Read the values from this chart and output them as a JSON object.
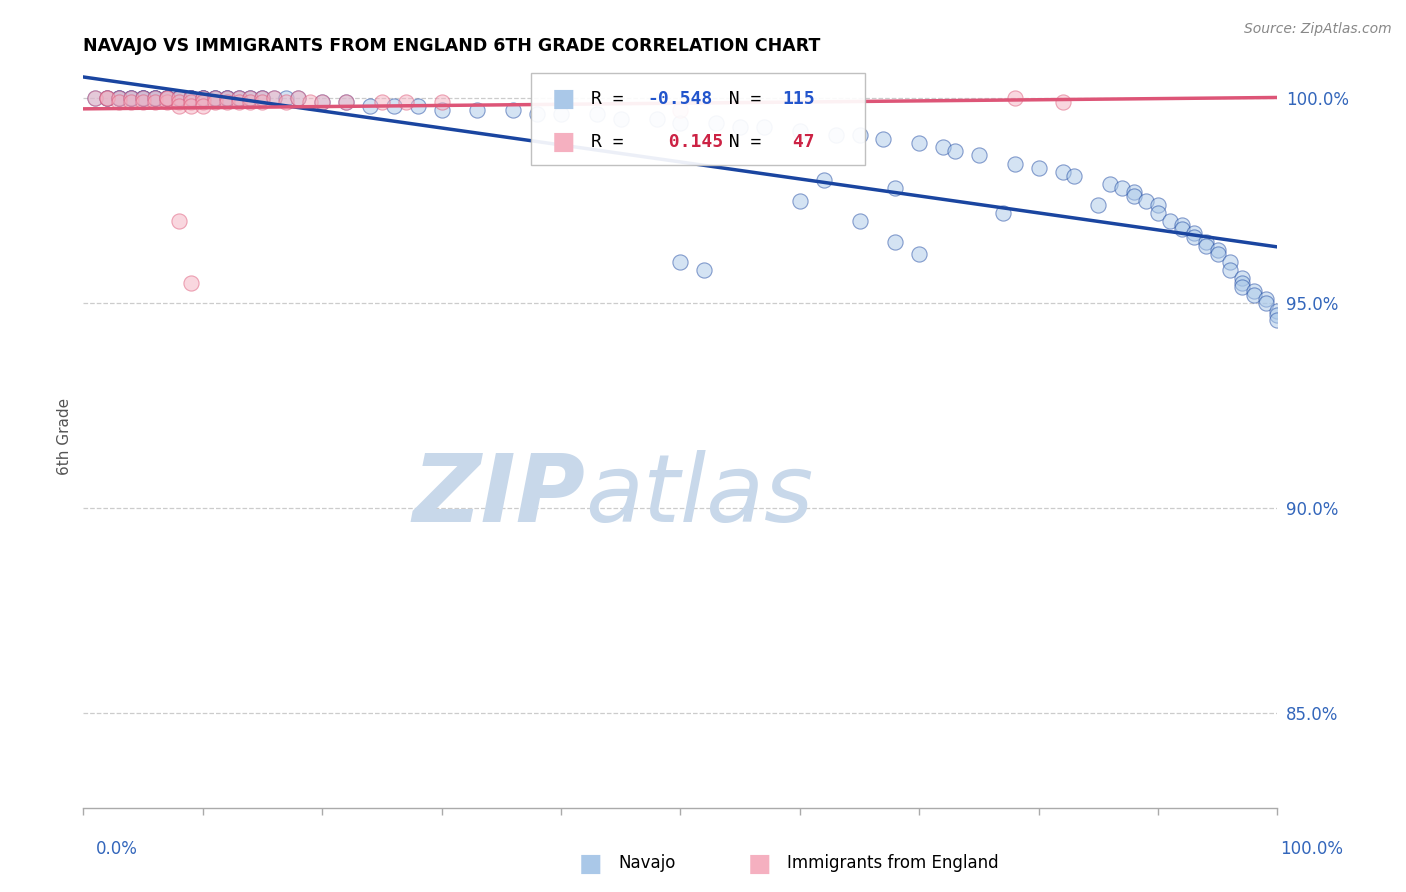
{
  "title": "NAVAJO VS IMMIGRANTS FROM ENGLAND 6TH GRADE CORRELATION CHART",
  "source": "Source: ZipAtlas.com",
  "ylabel": "6th Grade",
  "yticks": [
    0.85,
    0.9,
    0.95,
    1.0
  ],
  "ytick_labels": [
    "85.0%",
    "90.0%",
    "95.0%",
    "100.0%"
  ],
  "xlim": [
    0.0,
    1.0
  ],
  "ylim": [
    0.827,
    1.008
  ],
  "legend_blue_r": "-0.548",
  "legend_blue_n": "115",
  "legend_pink_r": "0.145",
  "legend_pink_n": "47",
  "blue_scatter_color": "#aac8e8",
  "blue_line_color": "#1a45a0",
  "pink_scatter_color": "#f5b0c0",
  "pink_line_color": "#dd5577",
  "legend_r_blue_color": "#2255cc",
  "legend_r_pink_color": "#cc2244",
  "watermark_zip": "ZIP",
  "watermark_atlas": "atlas",
  "watermark_color": "#dce6f0",
  "grid_color": "#cccccc",
  "axis_label_color": "#3366bb",
  "title_fontsize": 12.5,
  "source_fontsize": 10,
  "ytick_fontsize": 12,
  "xtick_label_fontsize": 12,
  "navajo_x": [
    0.01,
    0.02,
    0.02,
    0.03,
    0.03,
    0.03,
    0.04,
    0.04,
    0.04,
    0.05,
    0.05,
    0.05,
    0.05,
    0.06,
    0.06,
    0.06,
    0.06,
    0.07,
    0.07,
    0.07,
    0.07,
    0.08,
    0.08,
    0.08,
    0.08,
    0.09,
    0.09,
    0.09,
    0.09,
    0.1,
    0.1,
    0.1,
    0.1,
    0.11,
    0.11,
    0.11,
    0.12,
    0.12,
    0.12,
    0.13,
    0.13,
    0.14,
    0.14,
    0.15,
    0.15,
    0.16,
    0.17,
    0.18,
    0.2,
    0.22,
    0.24,
    0.26,
    0.28,
    0.3,
    0.33,
    0.36,
    0.38,
    0.4,
    0.43,
    0.45,
    0.48,
    0.5,
    0.53,
    0.55,
    0.57,
    0.6,
    0.62,
    0.63,
    0.65,
    0.67,
    0.68,
    0.7,
    0.72,
    0.73,
    0.75,
    0.77,
    0.78,
    0.8,
    0.82,
    0.83,
    0.85,
    0.86,
    0.87,
    0.88,
    0.88,
    0.89,
    0.9,
    0.9,
    0.91,
    0.92,
    0.92,
    0.93,
    0.93,
    0.94,
    0.94,
    0.95,
    0.95,
    0.96,
    0.96,
    0.97,
    0.97,
    0.97,
    0.98,
    0.98,
    0.99,
    0.99,
    1.0,
    1.0,
    1.0,
    0.5,
    0.52,
    0.6,
    0.65,
    0.68,
    0.7
  ],
  "navajo_y": [
    1.0,
    1.0,
    1.0,
    1.0,
    1.0,
    1.0,
    1.0,
    1.0,
    1.0,
    1.0,
    1.0,
    1.0,
    1.0,
    1.0,
    1.0,
    1.0,
    1.0,
    1.0,
    1.0,
    1.0,
    1.0,
    1.0,
    1.0,
    1.0,
    1.0,
    1.0,
    1.0,
    1.0,
    1.0,
    1.0,
    1.0,
    1.0,
    1.0,
    1.0,
    1.0,
    1.0,
    1.0,
    1.0,
    1.0,
    1.0,
    1.0,
    1.0,
    1.0,
    1.0,
    1.0,
    1.0,
    1.0,
    1.0,
    0.999,
    0.999,
    0.998,
    0.998,
    0.998,
    0.997,
    0.997,
    0.997,
    0.996,
    0.996,
    0.996,
    0.995,
    0.995,
    0.994,
    0.994,
    0.993,
    0.993,
    0.992,
    0.98,
    0.991,
    0.991,
    0.99,
    0.978,
    0.989,
    0.988,
    0.987,
    0.986,
    0.972,
    0.984,
    0.983,
    0.982,
    0.981,
    0.974,
    0.979,
    0.978,
    0.977,
    0.976,
    0.975,
    0.974,
    0.972,
    0.97,
    0.969,
    0.968,
    0.967,
    0.966,
    0.965,
    0.964,
    0.963,
    0.962,
    0.96,
    0.958,
    0.956,
    0.955,
    0.954,
    0.953,
    0.952,
    0.951,
    0.95,
    0.948,
    0.947,
    0.946,
    0.96,
    0.958,
    0.975,
    0.97,
    0.965,
    0.962
  ],
  "england_x": [
    0.01,
    0.02,
    0.02,
    0.03,
    0.03,
    0.04,
    0.04,
    0.05,
    0.05,
    0.06,
    0.06,
    0.07,
    0.07,
    0.07,
    0.08,
    0.08,
    0.08,
    0.09,
    0.09,
    0.09,
    0.1,
    0.1,
    0.1,
    0.11,
    0.11,
    0.12,
    0.12,
    0.13,
    0.13,
    0.14,
    0.14,
    0.15,
    0.15,
    0.16,
    0.17,
    0.18,
    0.19,
    0.2,
    0.22,
    0.25,
    0.27,
    0.3,
    0.08,
    0.09,
    0.5,
    0.78,
    0.82
  ],
  "england_y": [
    1.0,
    1.0,
    1.0,
    1.0,
    0.999,
    1.0,
    0.999,
    1.0,
    0.999,
    1.0,
    0.999,
    1.0,
    0.999,
    1.0,
    1.0,
    0.999,
    0.998,
    1.0,
    0.999,
    0.998,
    1.0,
    0.999,
    0.998,
    1.0,
    0.999,
    1.0,
    0.999,
    1.0,
    0.999,
    1.0,
    0.999,
    1.0,
    0.999,
    1.0,
    0.999,
    1.0,
    0.999,
    0.999,
    0.999,
    0.999,
    0.999,
    0.999,
    0.97,
    0.955,
    0.997,
    1.0,
    0.999
  ]
}
